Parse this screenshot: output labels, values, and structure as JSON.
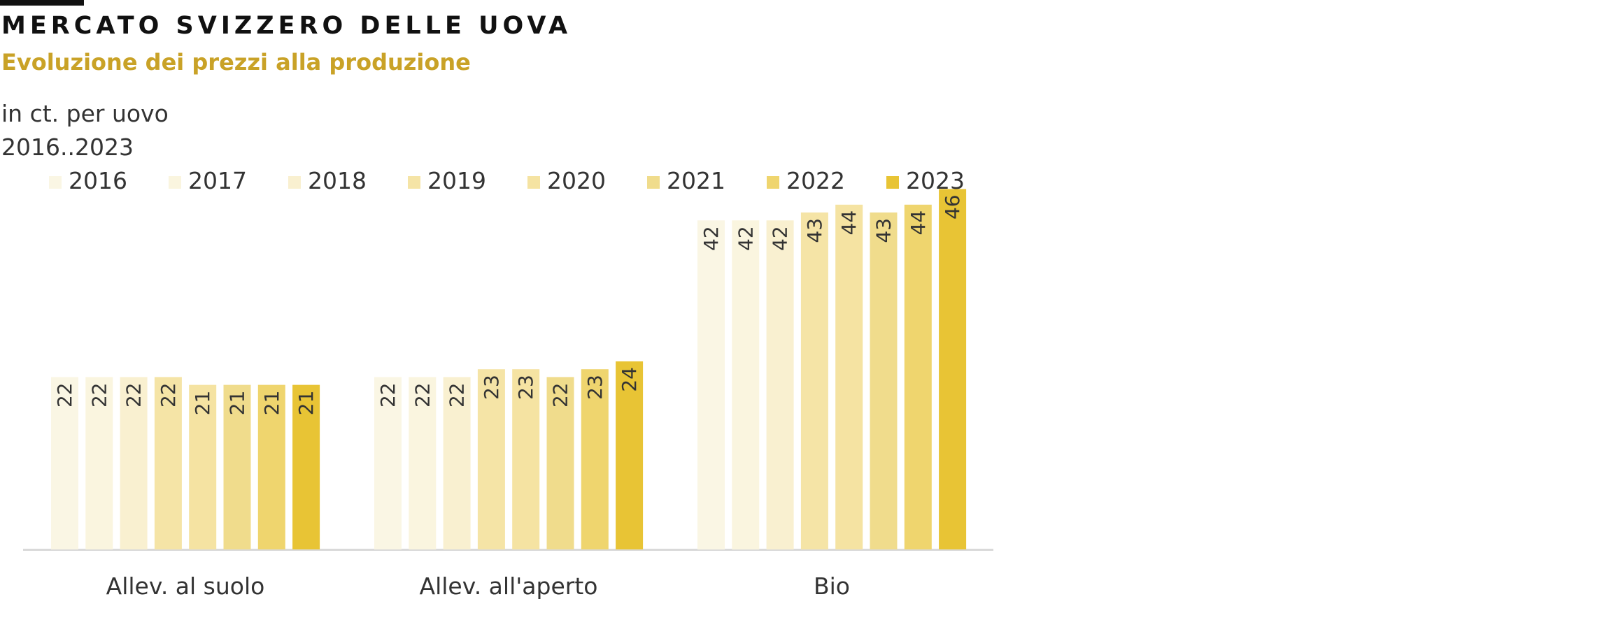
{
  "header": {
    "title": "MERCATO SVIZZERO DELLE UOVA",
    "subtitle": "Evoluzione dei prezzi alla produzione",
    "unit": "in ct. per uovo",
    "period": "2016..2023"
  },
  "chart_data": {
    "type": "bar",
    "title": "MERCATO SVIZZERO DELLE UOVA",
    "subtitle": "Evoluzione dei prezzi alla produzione",
    "ylabel": "in ct. per uovo",
    "xlabel": "",
    "categories": [
      "Allev. al suolo",
      "Allev. all'aperto",
      "Bio"
    ],
    "series": [
      {
        "name": "2016",
        "color": "#faf6e4",
        "values": [
          22,
          22,
          42
        ]
      },
      {
        "name": "2017",
        "color": "#faf5df",
        "values": [
          22,
          22,
          42
        ]
      },
      {
        "name": "2018",
        "color": "#f9f0d0",
        "values": [
          22,
          22,
          42
        ]
      },
      {
        "name": "2019",
        "color": "#f5e4a6",
        "values": [
          22,
          23,
          43
        ]
      },
      {
        "name": "2020",
        "color": "#f5e3a2",
        "values": [
          21,
          23,
          44
        ]
      },
      {
        "name": "2021",
        "color": "#f0dc8c",
        "values": [
          21,
          22,
          43
        ]
      },
      {
        "name": "2022",
        "color": "#efd56e",
        "values": [
          21,
          23,
          44
        ]
      },
      {
        "name": "2023",
        "color": "#e8c435",
        "values": [
          21,
          24,
          46
        ]
      }
    ],
    "ylim": [
      0,
      48
    ],
    "grid": false,
    "legend": "top",
    "data_labels": true,
    "label_orientation": "vertical"
  },
  "colors": {
    "title": "#111111",
    "subtitle": "#c9a227",
    "text": "#333333",
    "axis": "#d9d9d9"
  }
}
